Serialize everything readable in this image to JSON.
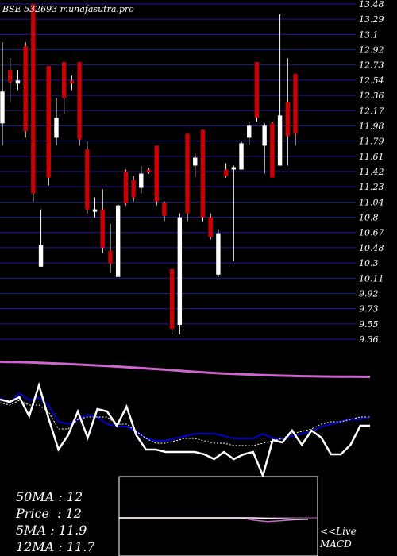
{
  "chart_data": {
    "type": "candlestick",
    "title": "BSE 532693 munafasutra.pro",
    "price_axis": {
      "tick_labels": [
        "13.48",
        "13.29",
        "13.1",
        "12.92",
        "12.73",
        "12.54",
        "12.36",
        "12.17",
        "11.98",
        "11.79",
        "11.61",
        "11.42",
        "11.23",
        "11.04",
        "10.8",
        "10.67",
        "10.48",
        "10.3",
        "10.11",
        "9.92",
        "9.73",
        "9.55",
        "9.36"
      ],
      "ylim": [
        9.27,
        13.48
      ],
      "grid": true
    },
    "candles": [
      {
        "o": 12.38,
        "h": 13.0,
        "l": 11.7,
        "c": 11.98,
        "dir": "up"
      },
      {
        "o": 12.5,
        "h": 12.8,
        "l": 12.25,
        "c": 12.65,
        "dir": "down"
      },
      {
        "o": 12.48,
        "h": 12.65,
        "l": 12.4,
        "c": 12.52,
        "dir": "up"
      },
      {
        "o": 12.95,
        "h": 13.0,
        "l": 11.8,
        "c": 11.88,
        "dir": "down"
      },
      {
        "o": 13.48,
        "h": 13.48,
        "l": 11.0,
        "c": 11.1,
        "dir": "down"
      },
      {
        "o": 10.18,
        "h": 10.9,
        "l": 10.18,
        "c": 10.45,
        "dir": "up"
      },
      {
        "o": 12.7,
        "h": 12.7,
        "l": 11.2,
        "c": 11.3,
        "dir": "down"
      },
      {
        "o": 11.8,
        "h": 12.3,
        "l": 11.7,
        "c": 12.05,
        "dir": "up"
      },
      {
        "o": 12.75,
        "h": 12.75,
        "l": 12.1,
        "c": 12.3,
        "dir": "down"
      },
      {
        "o": 12.52,
        "h": 12.58,
        "l": 12.4,
        "c": 12.48,
        "dir": "down"
      },
      {
        "o": 12.75,
        "h": 12.75,
        "l": 11.7,
        "c": 11.78,
        "dir": "down"
      },
      {
        "o": 11.65,
        "h": 11.75,
        "l": 10.85,
        "c": 10.9,
        "dir": "down"
      },
      {
        "o": 10.9,
        "h": 11.05,
        "l": 10.8,
        "c": 10.87,
        "dir": "up"
      },
      {
        "o": 10.9,
        "h": 11.15,
        "l": 10.35,
        "c": 10.42,
        "dir": "down"
      },
      {
        "o": 10.38,
        "h": 10.72,
        "l": 10.1,
        "c": 10.22,
        "dir": "down"
      },
      {
        "o": 10.05,
        "h": 10.97,
        "l": 10.05,
        "c": 10.95,
        "dir": "up"
      },
      {
        "o": 11.38,
        "h": 11.4,
        "l": 10.95,
        "c": 10.97,
        "dir": "down"
      },
      {
        "o": 11.27,
        "h": 11.32,
        "l": 11.0,
        "c": 11.05,
        "dir": "down"
      },
      {
        "o": 11.17,
        "h": 11.45,
        "l": 11.1,
        "c": 11.35,
        "dir": "up"
      },
      {
        "o": 11.37,
        "h": 11.42,
        "l": 11.35,
        "c": 11.4,
        "dir": "down"
      },
      {
        "o": 11.7,
        "h": 11.7,
        "l": 10.95,
        "c": 11.0,
        "dir": "down"
      },
      {
        "o": 10.98,
        "h": 11.0,
        "l": 10.75,
        "c": 10.82,
        "dir": "down"
      },
      {
        "o": 10.15,
        "h": 10.15,
        "l": 9.33,
        "c": 9.4,
        "dir": "down"
      },
      {
        "o": 9.45,
        "h": 10.85,
        "l": 9.33,
        "c": 10.8,
        "dir": "up"
      },
      {
        "o": 11.85,
        "h": 11.85,
        "l": 10.75,
        "c": 10.85,
        "dir": "down"
      },
      {
        "o": 11.45,
        "h": 11.6,
        "l": 11.3,
        "c": 11.55,
        "dir": "up"
      },
      {
        "o": 11.9,
        "h": 11.9,
        "l": 10.75,
        "c": 10.8,
        "dir": "down"
      },
      {
        "o": 10.8,
        "h": 10.85,
        "l": 10.52,
        "c": 10.55,
        "dir": "down"
      },
      {
        "o": 10.08,
        "h": 10.65,
        "l": 10.05,
        "c": 10.6,
        "dir": "up"
      },
      {
        "o": 11.4,
        "h": 11.48,
        "l": 11.3,
        "c": 11.32,
        "dir": "down"
      },
      {
        "o": 11.4,
        "h": 11.45,
        "l": 10.25,
        "c": 11.43,
        "dir": "up"
      },
      {
        "o": 11.4,
        "h": 11.75,
        "l": 11.4,
        "c": 11.73,
        "dir": "up"
      },
      {
        "o": 11.8,
        "h": 12.0,
        "l": 11.7,
        "c": 11.95,
        "dir": "up"
      },
      {
        "o": 12.75,
        "h": 12.75,
        "l": 12.0,
        "c": 12.05,
        "dir": "down"
      },
      {
        "o": 11.7,
        "h": 11.98,
        "l": 11.35,
        "c": 11.95,
        "dir": "up"
      },
      {
        "o": 11.98,
        "h": 12.0,
        "l": 11.3,
        "c": 11.3,
        "dir": "down"
      },
      {
        "o": 11.45,
        "h": 13.35,
        "l": 11.45,
        "c": 12.08,
        "dir": "up"
      },
      {
        "o": 12.25,
        "h": 12.8,
        "l": 11.45,
        "c": 11.82,
        "dir": "down"
      },
      {
        "o": 12.6,
        "h": 12.6,
        "l": 11.7,
        "c": 11.85,
        "dir": "down"
      }
    ],
    "ma_band_line": [
      40.6,
      40.3,
      40.1,
      39.8,
      39.3,
      38.8,
      38.3,
      37.7,
      37.1,
      36.5,
      35.9,
      35.2,
      34.5,
      33.8,
      33.0,
      32.2,
      31.4,
      30.6,
      29.7,
      28.8,
      27.9,
      27.1,
      26.4,
      25.8,
      25.2,
      24.7,
      24.2,
      23.8,
      23.4,
      23.0,
      22.7,
      22.4,
      22.2,
      22.0,
      21.9,
      21.8,
      21.7,
      21.6,
      21.5
    ],
    "macd": {
      "values": [
        0,
        0,
        0,
        0,
        0,
        0,
        0,
        0,
        0,
        0,
        -0.05,
        -0.08,
        -0.06,
        -0.04,
        -0.03
      ],
      "signal": [
        0,
        0,
        0,
        0,
        0,
        0,
        0,
        0,
        0,
        0,
        0,
        -0.01,
        -0.02,
        -0.03,
        -0.03
      ]
    },
    "indicator_price": [
      29,
      28,
      30,
      22,
      35,
      21,
      8,
      14,
      24,
      13,
      25,
      24,
      18,
      26,
      14,
      8,
      8,
      7,
      7,
      7,
      7,
      6,
      4,
      7,
      4,
      6,
      7,
      -3,
      12,
      11,
      16,
      10,
      16,
      13,
      6,
      6,
      10,
      18,
      18
    ],
    "indicator_ma_slow": [
      27,
      25,
      29,
      26,
      27,
      24,
      17,
      16,
      18,
      20,
      19,
      16,
      15,
      15,
      13,
      10,
      9,
      9,
      10,
      11,
      12,
      12,
      12,
      11,
      10,
      10,
      10,
      12,
      10,
      10,
      11,
      12,
      13,
      15,
      16,
      17,
      18,
      18,
      19
    ],
    "indicator_ma_fast": [
      25,
      24,
      26,
      24,
      24,
      21,
      14,
      14,
      18,
      19,
      19,
      19,
      16,
      16,
      13,
      10,
      8,
      8,
      9,
      10,
      10,
      9,
      8,
      8,
      7,
      7,
      7,
      8,
      9,
      10,
      12,
      13,
      14,
      16,
      17,
      17,
      18,
      19,
      19
    ],
    "legend": {
      "items": [
        {
          "label": "50MA",
          "value": "12"
        },
        {
          "label": "Price",
          "value": "12"
        },
        {
          "label": "5MA",
          "value": "11.9"
        },
        {
          "label": "12MA",
          "value": "11.7"
        }
      ],
      "sep": ":"
    },
    "macd_label": {
      "line1": "<<Live",
      "line2": "MACD"
    },
    "colors": {
      "up": "#ffffff",
      "down": "#cc0000",
      "grid": "#1e1e8c",
      "ma_band": "#cc66cc",
      "slow_ma": "#0000cc",
      "fast_ma": "#ffffff",
      "macd": "#cc66cc"
    }
  }
}
